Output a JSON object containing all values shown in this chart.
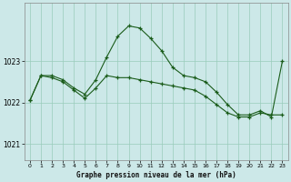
{
  "title": "Graphe pression niveau de la mer (hPa)",
  "bg_color": "#cce8e8",
  "grid_color": "#99ccbb",
  "line_color": "#1a5c1a",
  "ylim": [
    1020.6,
    1024.4
  ],
  "yticks": [
    1021,
    1022,
    1023
  ],
  "xlim": [
    -0.5,
    23.5
  ],
  "xticks": [
    0,
    1,
    2,
    3,
    4,
    5,
    6,
    7,
    8,
    9,
    10,
    11,
    12,
    13,
    14,
    15,
    16,
    17,
    18,
    19,
    20,
    21,
    22,
    23
  ],
  "series1_x": [
    0,
    1,
    2,
    3,
    4,
    5,
    6,
    7,
    8,
    9,
    10,
    11,
    12,
    13,
    14,
    15,
    16,
    17,
    18,
    19,
    20,
    21,
    22,
    23
  ],
  "series1_y": [
    1022.05,
    1022.65,
    1022.65,
    1022.55,
    1022.35,
    1022.2,
    1022.55,
    1023.1,
    1023.6,
    1023.85,
    1023.8,
    1023.55,
    1023.25,
    1022.85,
    1022.65,
    1022.6,
    1022.5,
    1022.25,
    1021.95,
    1021.7,
    1021.7,
    1021.8,
    1021.65,
    1023.0
  ],
  "series2_x": [
    0,
    1,
    2,
    3,
    4,
    5,
    6,
    7,
    8,
    9,
    10,
    11,
    12,
    13,
    14,
    15,
    16,
    17,
    18,
    19,
    20,
    21,
    22,
    23
  ],
  "series2_y": [
    1022.05,
    1022.65,
    1022.6,
    1022.5,
    1022.3,
    1022.1,
    1022.35,
    1022.65,
    1022.6,
    1022.6,
    1022.55,
    1022.5,
    1022.45,
    1022.4,
    1022.35,
    1022.3,
    1022.15,
    1021.95,
    1021.75,
    1021.65,
    1021.65,
    1021.75,
    1021.7,
    1021.7
  ]
}
